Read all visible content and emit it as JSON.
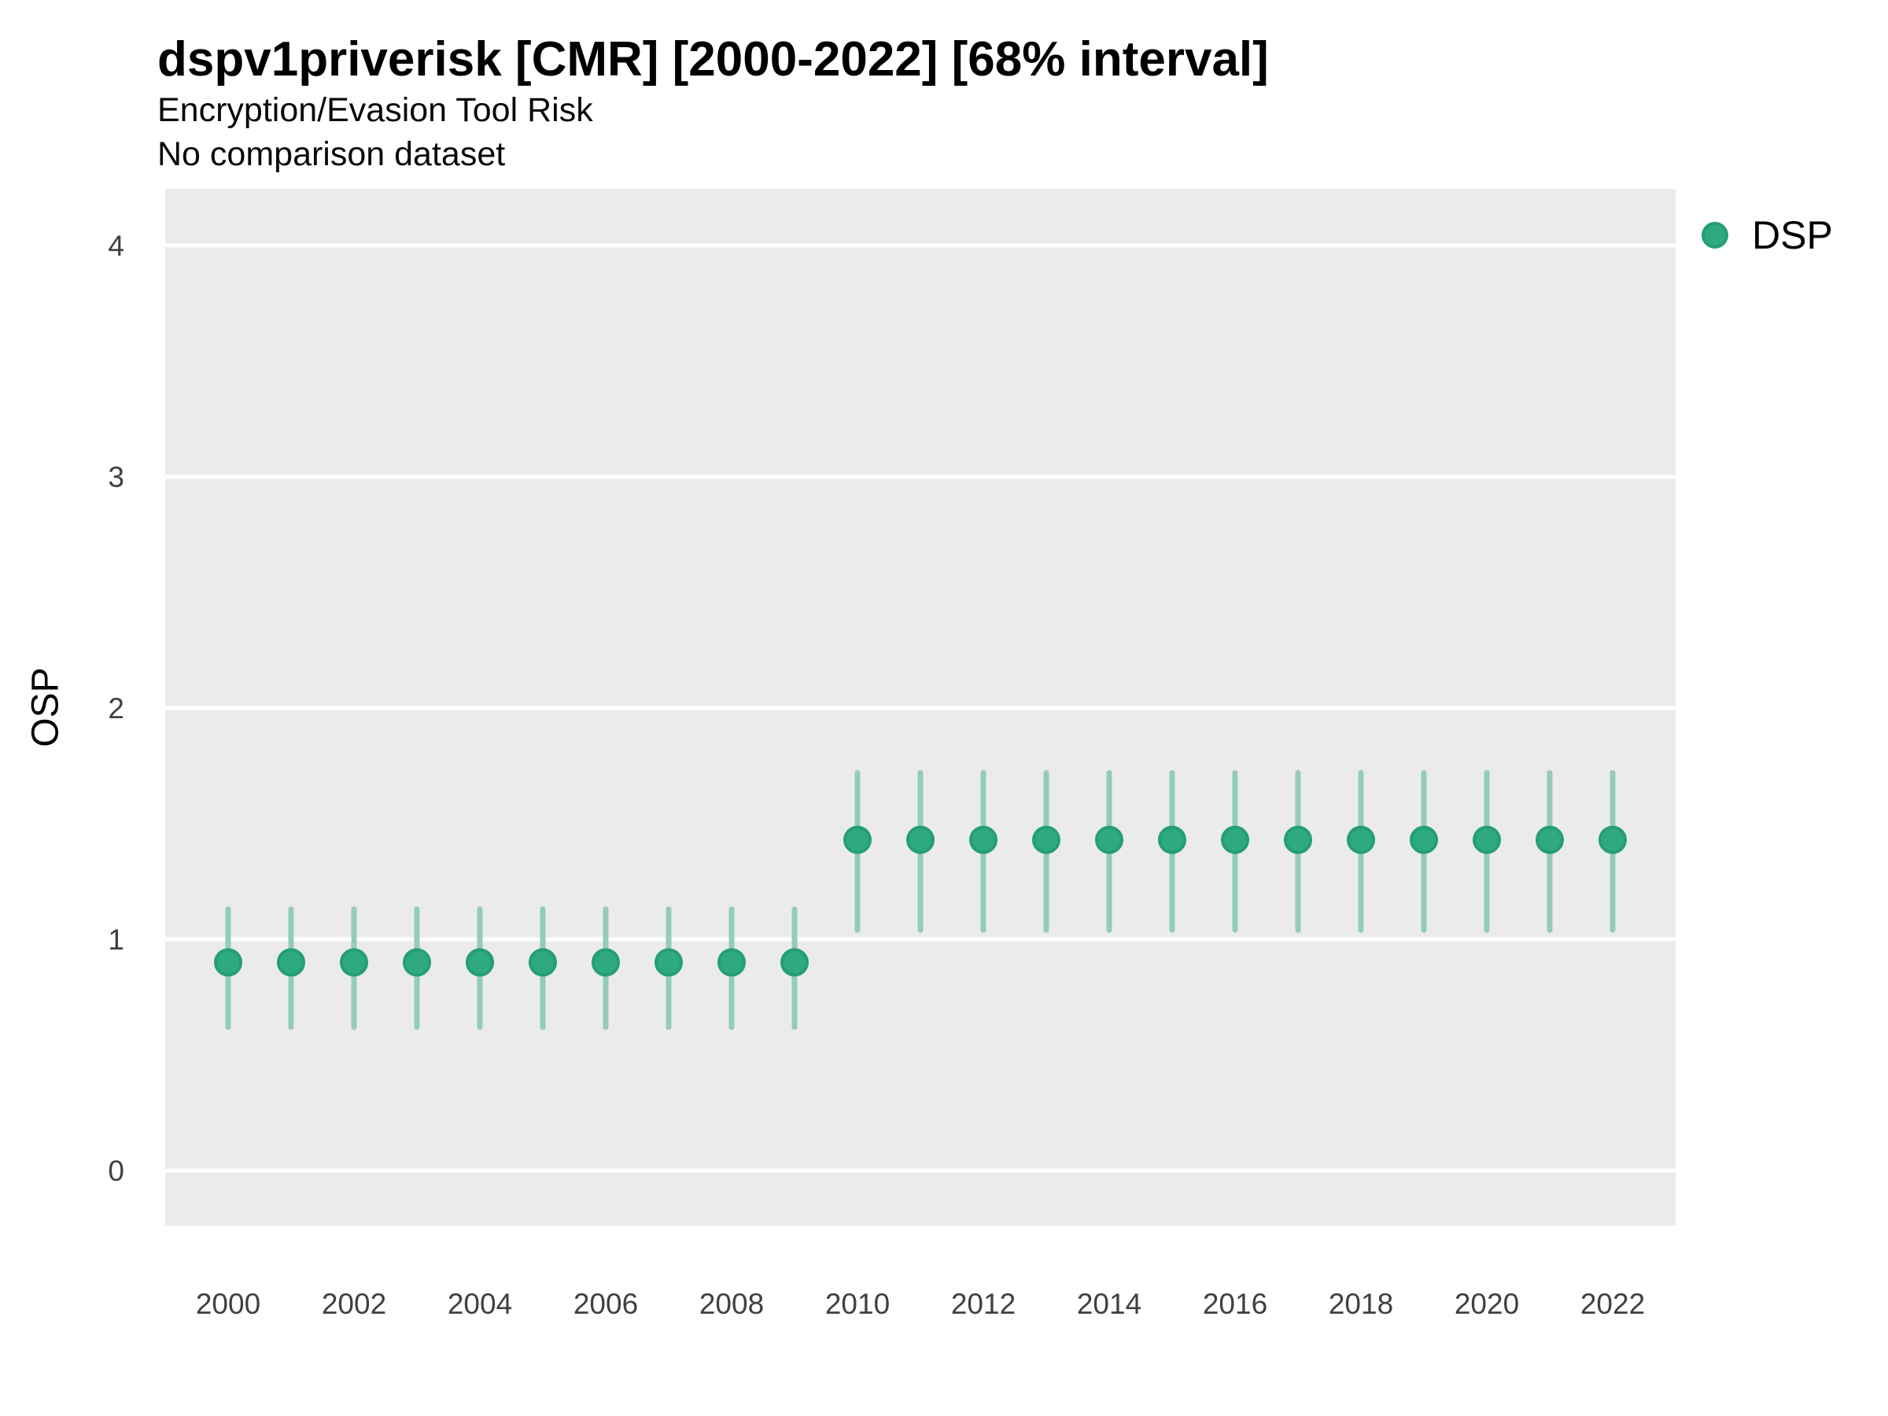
{
  "chart_data": {
    "type": "pointrange",
    "title": "dspv1priverisk [CMR] [2000-2022] [68% interval]",
    "subtitle": "Encryption/Evasion Tool Risk",
    "comparison_note": "No comparison dataset",
    "xlabel": "",
    "ylabel": "OSP",
    "interval_level": "68%",
    "ylim": [
      -0.24,
      4.25
    ],
    "yticks": [
      0,
      1,
      2,
      3,
      4
    ],
    "xlim": [
      1999,
      2023
    ],
    "xtick_years": [
      2000,
      2002,
      2004,
      2006,
      2008,
      2010,
      2012,
      2014,
      2016,
      2018,
      2020,
      2022
    ],
    "grid": "horizontal-major-only",
    "legend": {
      "position": "top-right",
      "entries": [
        {
          "label": "DSP",
          "marker": "circle"
        }
      ]
    },
    "series": [
      {
        "name": "DSP",
        "points": [
          {
            "year": 2000,
            "value": 0.9,
            "low": 0.62,
            "high": 1.13
          },
          {
            "year": 2001,
            "value": 0.9,
            "low": 0.62,
            "high": 1.13
          },
          {
            "year": 2002,
            "value": 0.9,
            "low": 0.62,
            "high": 1.13
          },
          {
            "year": 2003,
            "value": 0.9,
            "low": 0.62,
            "high": 1.13
          },
          {
            "year": 2004,
            "value": 0.9,
            "low": 0.62,
            "high": 1.13
          },
          {
            "year": 2005,
            "value": 0.9,
            "low": 0.62,
            "high": 1.13
          },
          {
            "year": 2006,
            "value": 0.9,
            "low": 0.62,
            "high": 1.13
          },
          {
            "year": 2007,
            "value": 0.9,
            "low": 0.62,
            "high": 1.13
          },
          {
            "year": 2008,
            "value": 0.9,
            "low": 0.62,
            "high": 1.13
          },
          {
            "year": 2009,
            "value": 0.9,
            "low": 0.62,
            "high": 1.13
          },
          {
            "year": 2010,
            "value": 1.43,
            "low": 1.04,
            "high": 1.72
          },
          {
            "year": 2011,
            "value": 1.43,
            "low": 1.04,
            "high": 1.72
          },
          {
            "year": 2012,
            "value": 1.43,
            "low": 1.04,
            "high": 1.72
          },
          {
            "year": 2013,
            "value": 1.43,
            "low": 1.04,
            "high": 1.72
          },
          {
            "year": 2014,
            "value": 1.43,
            "low": 1.04,
            "high": 1.72
          },
          {
            "year": 2015,
            "value": 1.43,
            "low": 1.04,
            "high": 1.72
          },
          {
            "year": 2016,
            "value": 1.43,
            "low": 1.04,
            "high": 1.72
          },
          {
            "year": 2017,
            "value": 1.43,
            "low": 1.04,
            "high": 1.72
          },
          {
            "year": 2018,
            "value": 1.43,
            "low": 1.04,
            "high": 1.72
          },
          {
            "year": 2019,
            "value": 1.43,
            "low": 1.04,
            "high": 1.72
          },
          {
            "year": 2020,
            "value": 1.43,
            "low": 1.04,
            "high": 1.72
          },
          {
            "year": 2021,
            "value": 1.43,
            "low": 1.04,
            "high": 1.72
          },
          {
            "year": 2022,
            "value": 1.43,
            "low": 1.04,
            "high": 1.72
          }
        ]
      }
    ]
  },
  "colors": {
    "point_fill": "#2fa982",
    "point_stroke": "#249e77",
    "interval_bar": "#93ccb7",
    "panel_bg": "#ebebeb",
    "gridline": "#ffffff",
    "tick_text": "#404040",
    "text": "#000000",
    "page_bg": "#ffffff"
  }
}
